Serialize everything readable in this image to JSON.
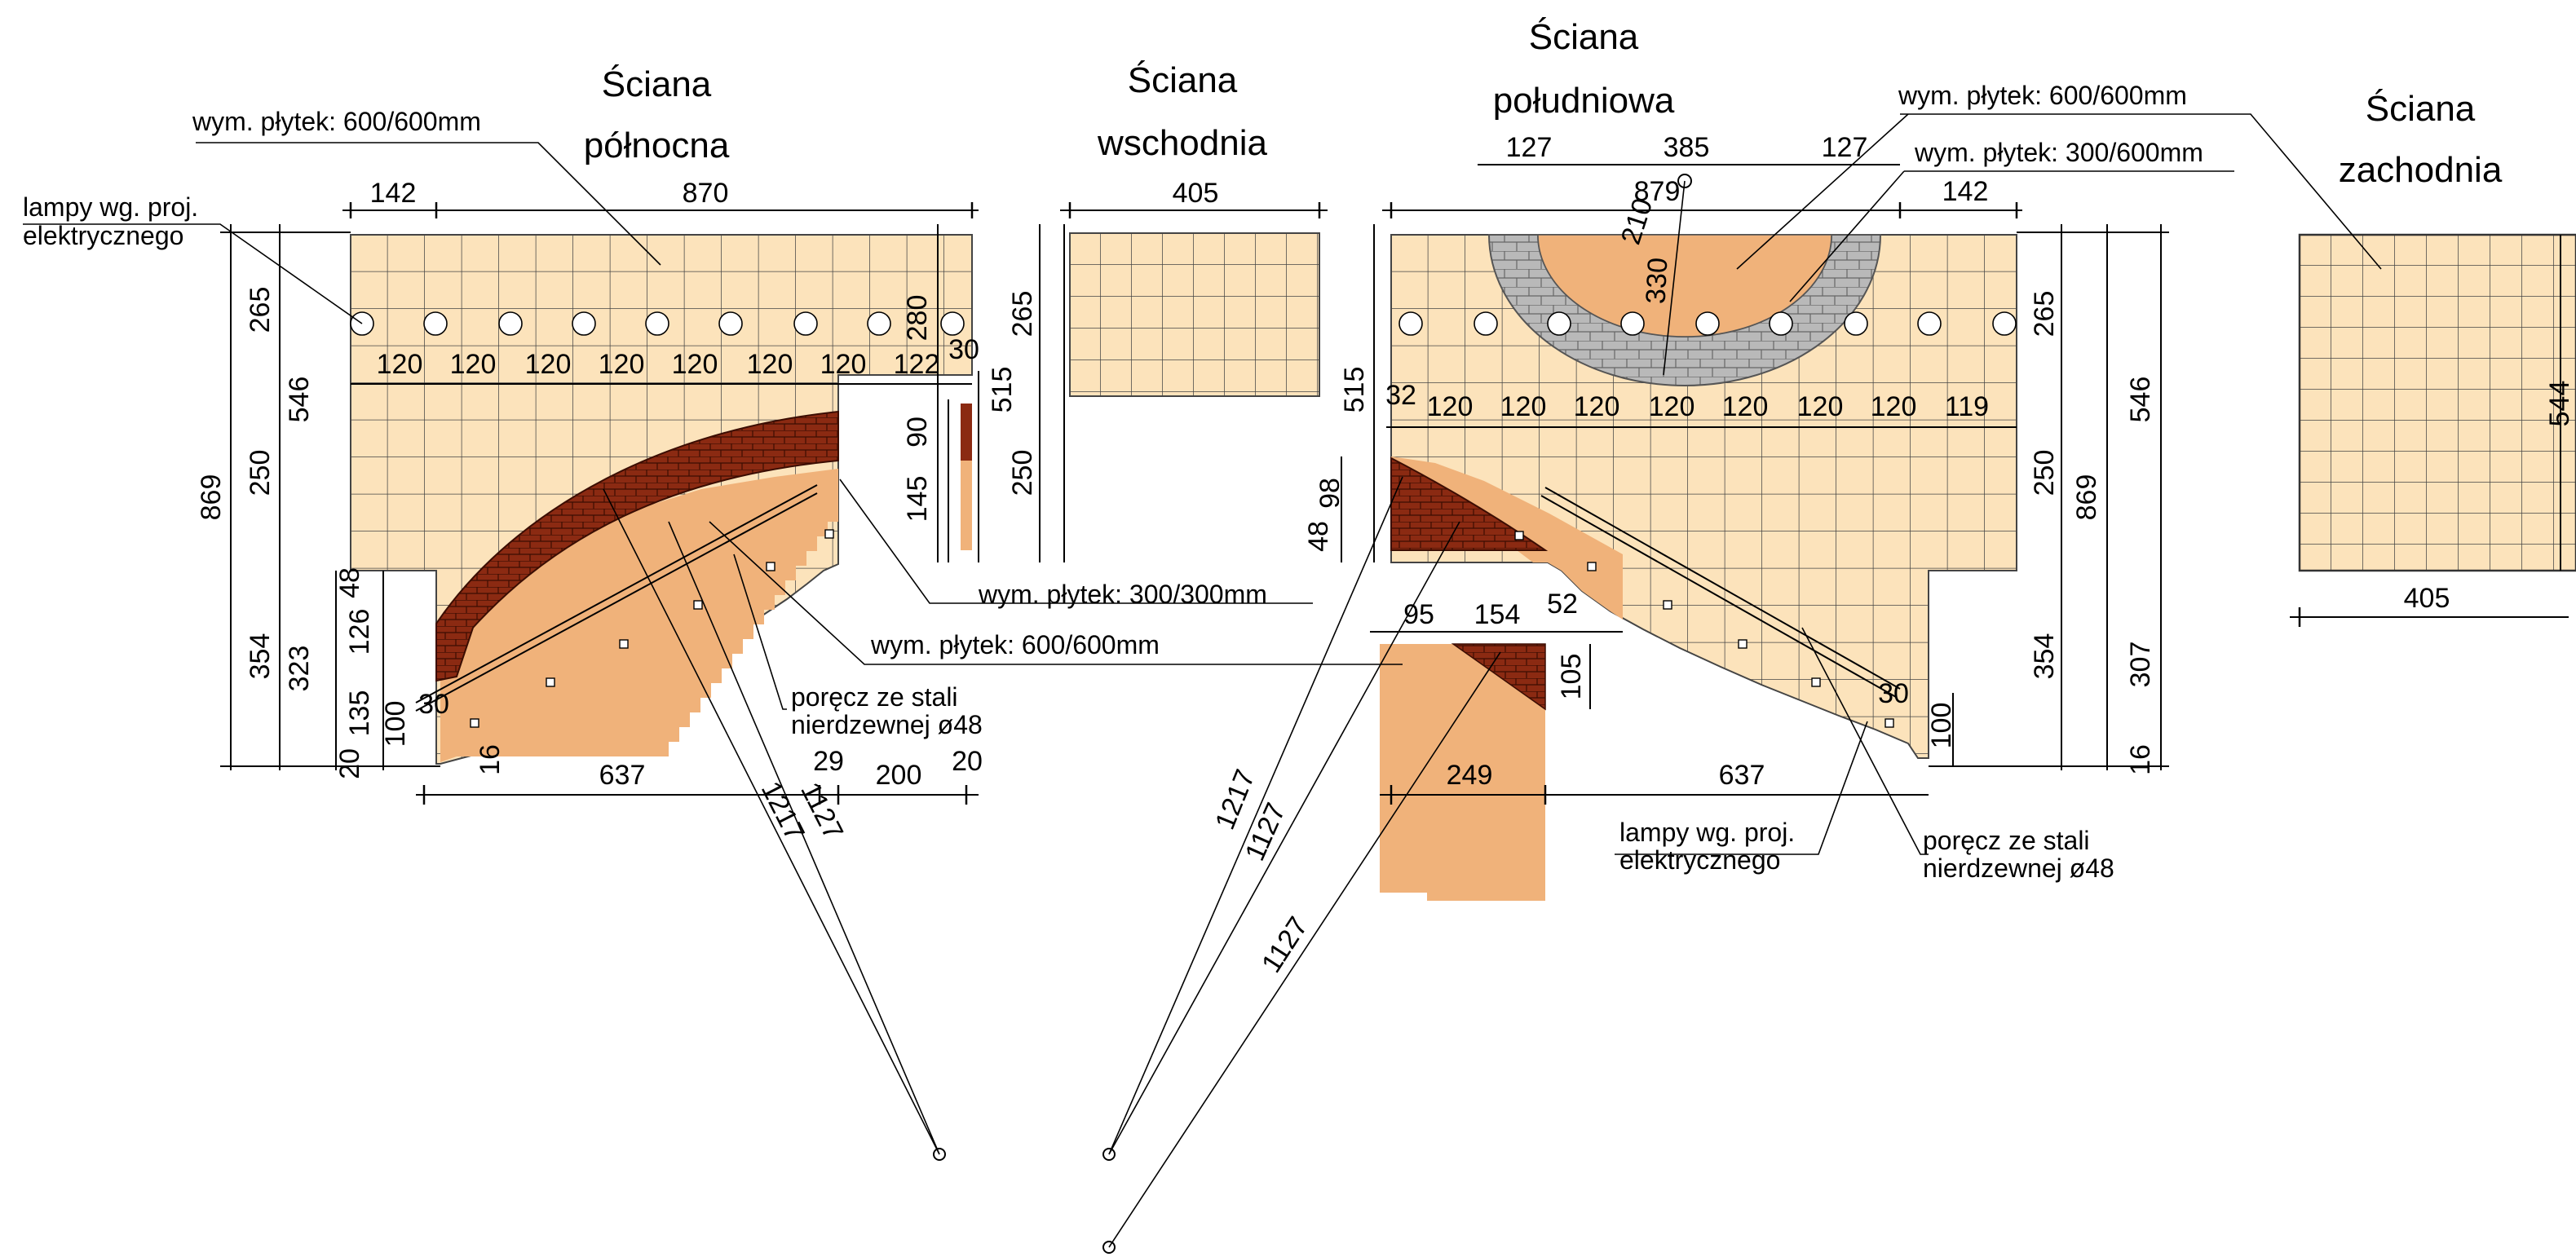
{
  "colors": {
    "wall_tile_light": "#fce3bb",
    "stair_tile": "#f0b27a",
    "brick_red": "#8b2a12",
    "arch_grey": "#b9b9b9",
    "line": "#000000"
  },
  "walls": {
    "north": {
      "title1": "Ściana",
      "title2": "północna"
    },
    "east": {
      "title1": "Ściana",
      "title2": "wschodnia"
    },
    "south": {
      "title1": "Ściana",
      "title2": "południowa"
    },
    "west": {
      "title1": "Ściana",
      "title2": "zachodnia"
    }
  },
  "notes": {
    "tile_600_a": "wym. płytek: 600/600mm",
    "tile_600_b": "wym. płytek: 600/600mm",
    "tile_600_c": "wym. płytek: 600/600mm",
    "tile_300_300": "wym. płytek: 300/300mm",
    "tile_300_600": "wym. płytek: 300/600mm",
    "lamps_l1": "lampy wg. proj.",
    "lamps_l2": "elektrycznego",
    "lamps_b1": "lampy wg. proj.",
    "lamps_b2": "elektrycznego",
    "rail_l1": "poręcz ze stali",
    "rail_l2": "nierdzewnej ø48",
    "rail_b1": "poręcz ze stali",
    "rail_b2": "nierdzewnej ø48"
  },
  "dims": {
    "n_142": "142",
    "n_870": "870",
    "n_869": "869",
    "n_265": "265",
    "n_546": "546",
    "n_250": "250",
    "n_354": "354",
    "n_323": "323",
    "n_48": "48",
    "n_126": "126",
    "n_135": "135",
    "n_100": "100",
    "n_20a": "20",
    "n_30a": "30",
    "n_16": "16",
    "n_637": "637",
    "n_29": "29",
    "n_200": "200",
    "n_20b": "20",
    "n_280": "280",
    "n_30b": "30",
    "n_90": "90",
    "n_145": "145",
    "n_1217": "1217",
    "n_1127": "1127",
    "n_sp": [
      "120",
      "120",
      "120",
      "120",
      "120",
      "120",
      "120",
      "122"
    ],
    "e_405": "405",
    "e_265": "265",
    "e_515": "515",
    "e_250": "250",
    "s_127a": "127",
    "s_385": "385",
    "s_127b": "127",
    "s_879": "879",
    "s_142": "142",
    "s_210": "210",
    "s_330": "330",
    "s_515": "515",
    "s_98": "98",
    "s_48": "48",
    "s_32": "32",
    "s_sp": [
      "120",
      "120",
      "120",
      "120",
      "120",
      "120",
      "120",
      "119"
    ],
    "s_95": "95",
    "s_154": "154",
    "s_52": "52",
    "s_105": "105",
    "s_249": "249",
    "s_637": "637",
    "s_30": "30",
    "s_100": "100",
    "s_265": "265",
    "s_250": "250",
    "s_869": "869",
    "s_354": "354",
    "s_546": "546",
    "s_307": "307",
    "s_16": "16",
    "s_1217": "1217",
    "s_1127a": "1127",
    "s_1127b": "1127",
    "w_405": "405",
    "w_544": "544"
  }
}
